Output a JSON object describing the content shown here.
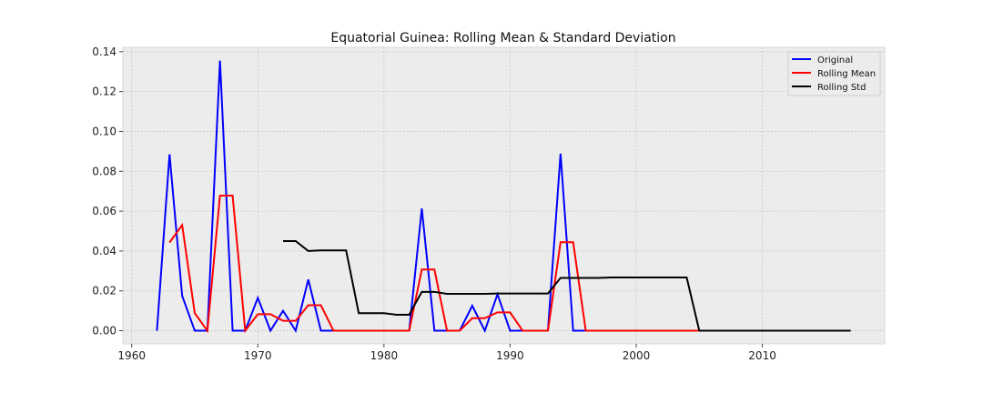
{
  "chart_data": {
    "type": "line",
    "title": "Equatorial Guinea: Rolling Mean & Standard Deviation",
    "xlabel": "",
    "ylabel": "",
    "xlim": [
      1959.3,
      2019.7
    ],
    "ylim": [
      -0.0066,
      0.1422
    ],
    "x_ticks": [
      1960,
      1970,
      1980,
      1990,
      2000,
      2010
    ],
    "y_ticks": [
      0.0,
      0.02,
      0.04,
      0.06,
      0.08,
      0.1,
      0.12,
      0.14
    ],
    "y_tick_labels": [
      "0.00",
      "0.02",
      "0.04",
      "0.06",
      "0.08",
      "0.10",
      "0.12",
      "0.14"
    ],
    "grid": true,
    "legend_position": "top-right",
    "series": [
      {
        "name": "Original",
        "color": "#0000ff",
        "points": [
          [
            1962,
            0.0
          ],
          [
            1963,
            0.0885
          ],
          [
            1964,
            0.0175
          ],
          [
            1965,
            0.0
          ],
          [
            1966,
            0.0
          ],
          [
            1967,
            0.1355
          ],
          [
            1968,
            0.0
          ],
          [
            1969,
            0.0
          ],
          [
            1970,
            0.0165
          ],
          [
            1971,
            0.0
          ],
          [
            1972,
            0.01
          ],
          [
            1973,
            0.0
          ],
          [
            1974,
            0.0257
          ],
          [
            1975,
            0.0
          ],
          [
            1976,
            0.0
          ],
          [
            1977,
            0.0
          ],
          [
            1978,
            0.0
          ],
          [
            1979,
            0.0
          ],
          [
            1980,
            0.0
          ],
          [
            1981,
            0.0
          ],
          [
            1982,
            0.0
          ],
          [
            1983,
            0.0613
          ],
          [
            1984,
            0.0
          ],
          [
            1985,
            0.0
          ],
          [
            1986,
            0.0
          ],
          [
            1987,
            0.0125
          ],
          [
            1988,
            0.0
          ],
          [
            1989,
            0.0183
          ],
          [
            1990,
            0.0
          ],
          [
            1991,
            0.0
          ],
          [
            1992,
            0.0
          ],
          [
            1993,
            0.0
          ],
          [
            1994,
            0.0888
          ],
          [
            1995,
            0.0
          ],
          [
            1996,
            0.0
          ],
          [
            1997,
            0.0
          ],
          [
            1998,
            0.0
          ],
          [
            1999,
            0.0
          ],
          [
            2000,
            0.0
          ],
          [
            2001,
            0.0
          ],
          [
            2002,
            0.0
          ],
          [
            2003,
            0.0
          ],
          [
            2004,
            0.0
          ],
          [
            2005,
            0.0
          ],
          [
            2006,
            0.0
          ],
          [
            2007,
            0.0
          ],
          [
            2008,
            0.0
          ],
          [
            2009,
            0.0
          ],
          [
            2010,
            0.0
          ],
          [
            2011,
            0.0
          ],
          [
            2012,
            0.0
          ],
          [
            2013,
            0.0
          ],
          [
            2014,
            0.0
          ],
          [
            2015,
            0.0
          ],
          [
            2016,
            0.0
          ],
          [
            2017,
            0.0
          ]
        ]
      },
      {
        "name": "Rolling Mean",
        "color": "#ff0000",
        "points": [
          [
            1963,
            0.0443
          ],
          [
            1964,
            0.053
          ],
          [
            1965,
            0.0088
          ],
          [
            1966,
            0.0
          ],
          [
            1967,
            0.0678
          ],
          [
            1968,
            0.0678
          ],
          [
            1969,
            0.0
          ],
          [
            1970,
            0.0083
          ],
          [
            1971,
            0.0083
          ],
          [
            1972,
            0.005
          ],
          [
            1973,
            0.005
          ],
          [
            1974,
            0.0128
          ],
          [
            1975,
            0.0128
          ],
          [
            1976,
            0.0
          ],
          [
            1977,
            0.0
          ],
          [
            1978,
            0.0
          ],
          [
            1979,
            0.0
          ],
          [
            1980,
            0.0
          ],
          [
            1981,
            0.0
          ],
          [
            1982,
            0.0
          ],
          [
            1983,
            0.0307
          ],
          [
            1984,
            0.0307
          ],
          [
            1985,
            0.0
          ],
          [
            1986,
            0.0
          ],
          [
            1987,
            0.0063
          ],
          [
            1988,
            0.0063
          ],
          [
            1989,
            0.0092
          ],
          [
            1990,
            0.0092
          ],
          [
            1991,
            0.0
          ],
          [
            1992,
            0.0
          ],
          [
            1993,
            0.0
          ],
          [
            1994,
            0.0444
          ],
          [
            1995,
            0.0444
          ],
          [
            1996,
            0.0
          ],
          [
            1997,
            0.0
          ],
          [
            1998,
            0.0
          ],
          [
            1999,
            0.0
          ],
          [
            2000,
            0.0
          ],
          [
            2001,
            0.0
          ],
          [
            2002,
            0.0
          ],
          [
            2003,
            0.0
          ],
          [
            2004,
            0.0
          ],
          [
            2005,
            0.0
          ],
          [
            2006,
            0.0
          ],
          [
            2007,
            0.0
          ],
          [
            2008,
            0.0
          ],
          [
            2009,
            0.0
          ],
          [
            2010,
            0.0
          ],
          [
            2011,
            0.0
          ],
          [
            2012,
            0.0
          ],
          [
            2013,
            0.0
          ],
          [
            2014,
            0.0
          ],
          [
            2015,
            0.0
          ],
          [
            2016,
            0.0
          ],
          [
            2017,
            0.0
          ]
        ]
      },
      {
        "name": "Rolling Std",
        "color": "#000000",
        "points": [
          [
            1972,
            0.045
          ],
          [
            1973,
            0.045
          ],
          [
            1974,
            0.04
          ],
          [
            1975,
            0.0403
          ],
          [
            1976,
            0.0403
          ],
          [
            1977,
            0.0403
          ],
          [
            1978,
            0.0088
          ],
          [
            1979,
            0.0088
          ],
          [
            1980,
            0.0088
          ],
          [
            1981,
            0.008
          ],
          [
            1982,
            0.008
          ],
          [
            1983,
            0.0195
          ],
          [
            1984,
            0.0195
          ],
          [
            1985,
            0.0185
          ],
          [
            1986,
            0.0185
          ],
          [
            1987,
            0.0185
          ],
          [
            1988,
            0.0185
          ],
          [
            1989,
            0.0187
          ],
          [
            1990,
            0.0187
          ],
          [
            1991,
            0.0187
          ],
          [
            1992,
            0.0187
          ],
          [
            1993,
            0.0187
          ],
          [
            1994,
            0.0265
          ],
          [
            1995,
            0.0265
          ],
          [
            1996,
            0.0265
          ],
          [
            1997,
            0.0265
          ],
          [
            1998,
            0.0267
          ],
          [
            1999,
            0.0267
          ],
          [
            2000,
            0.0267
          ],
          [
            2001,
            0.0267
          ],
          [
            2002,
            0.0267
          ],
          [
            2003,
            0.0267
          ],
          [
            2004,
            0.0267
          ],
          [
            2005,
            0.0
          ],
          [
            2006,
            0.0
          ],
          [
            2007,
            0.0
          ],
          [
            2008,
            0.0
          ],
          [
            2009,
            0.0
          ],
          [
            2010,
            0.0
          ],
          [
            2011,
            0.0
          ],
          [
            2012,
            0.0
          ],
          [
            2013,
            0.0
          ],
          [
            2014,
            0.0
          ],
          [
            2015,
            0.0
          ],
          [
            2016,
            0.0
          ],
          [
            2017,
            0.0
          ]
        ]
      }
    ]
  }
}
